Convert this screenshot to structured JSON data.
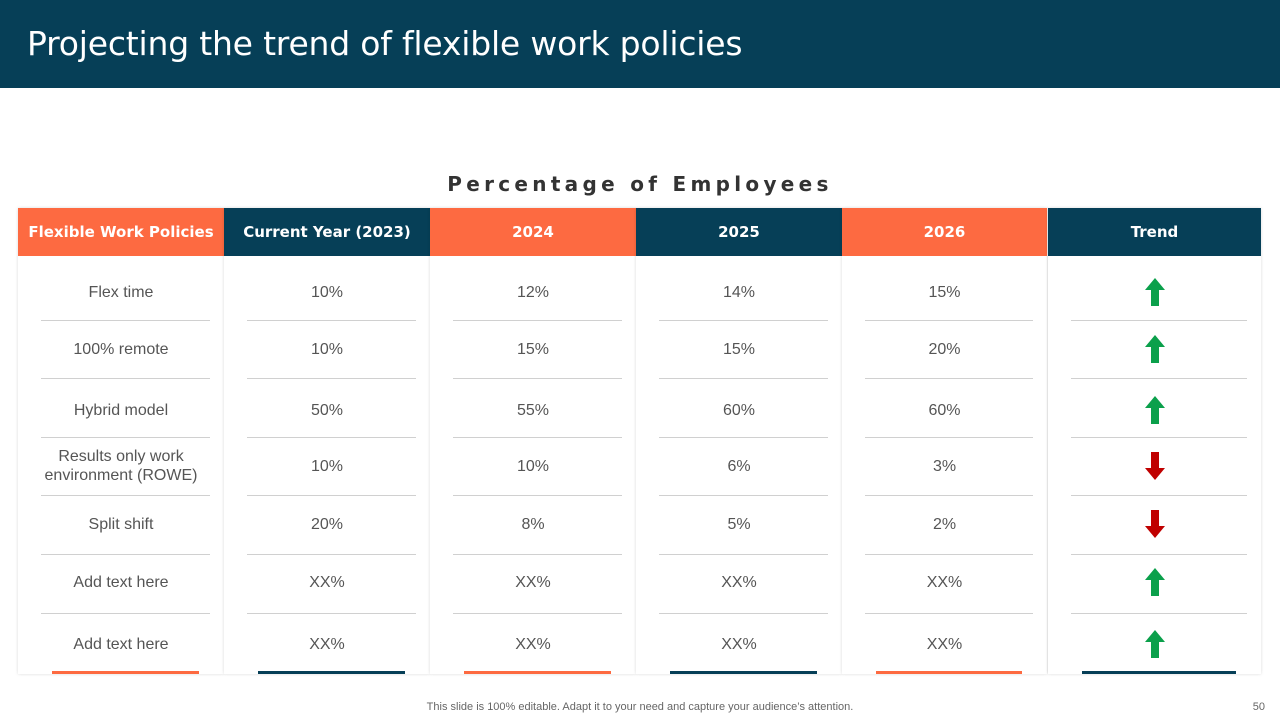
{
  "title": "Projecting the trend of flexible work policies",
  "subtitle": "Percentage of Employees",
  "columns": [
    {
      "header": "Flexible Work Policies",
      "type": "label",
      "color": "orange"
    },
    {
      "header": "Current Year (2023)",
      "type": "value",
      "color": "navy"
    },
    {
      "header": "2024",
      "type": "value",
      "color": "orange"
    },
    {
      "header": "2025",
      "type": "value",
      "color": "navy"
    },
    {
      "header": "2026",
      "type": "value",
      "color": "orange"
    },
    {
      "header": "Trend",
      "type": "trend",
      "color": "navy"
    }
  ],
  "rows": [
    {
      "policy": "Flex time",
      "values": [
        "10%",
        "12%",
        "14%",
        "15%"
      ],
      "trend": "up"
    },
    {
      "policy": "100% remote",
      "values": [
        "10%",
        "15%",
        "15%",
        "20%"
      ],
      "trend": "up"
    },
    {
      "policy": "Hybrid model",
      "values": [
        "50%",
        "55%",
        "60%",
        "60%"
      ],
      "trend": "up"
    },
    {
      "policy": "Results only work environment  (ROWE)",
      "values": [
        "10%",
        "10%",
        "6%",
        "3%"
      ],
      "trend": "down"
    },
    {
      "policy": "Split shift",
      "values": [
        "20%",
        "8%",
        "5%",
        "2%"
      ],
      "trend": "down"
    },
    {
      "policy": "Add text here",
      "values": [
        "XX%",
        "XX%",
        "XX%",
        "XX%"
      ],
      "trend": "up"
    },
    {
      "policy": "Add text here",
      "values": [
        "XX%",
        "XX%",
        "XX%",
        "XX%"
      ],
      "trend": "up"
    }
  ],
  "trend_icons": {
    "up": "arrow-up-icon",
    "down": "arrow-down-icon"
  },
  "colors": {
    "orange": "#FD6A41",
    "navy": "#063F57",
    "up": "#0BA04B",
    "down": "#C00000"
  },
  "footer": "This slide is 100% editable. Adapt it to your need and capture your audience’s attention.",
  "page_number": "50"
}
